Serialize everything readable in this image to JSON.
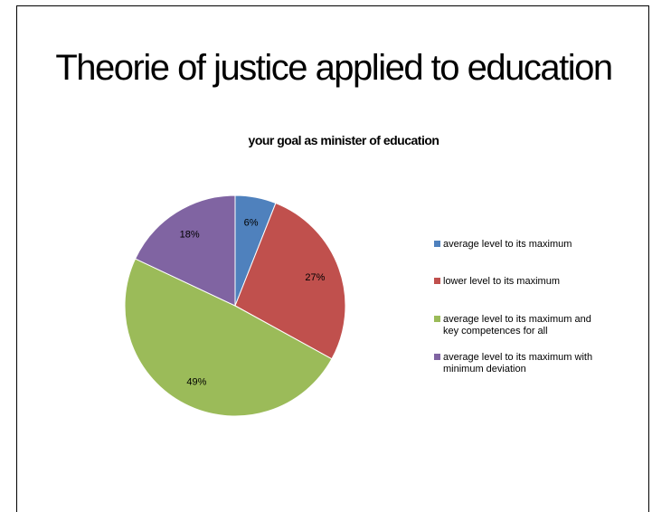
{
  "slide": {
    "title": "Theorie of justice applied to education"
  },
  "chart_data": {
    "type": "pie",
    "title": "your goal as minister of education",
    "slices": [
      {
        "label": "average level to its maximum",
        "value": 6,
        "display": "6%",
        "color": "#4F81BD"
      },
      {
        "label": "lower level to its maximum",
        "value": 27,
        "display": "27%",
        "color": "#C0504D"
      },
      {
        "label": "average level to its maximum and key competences for all",
        "value": 49,
        "display": "49%",
        "color": "#9BBB59"
      },
      {
        "label": "average level to its maximum with minimum deviation",
        "value": 18,
        "display": "18%",
        "color": "#8064A2"
      }
    ],
    "legend_position": "right"
  }
}
